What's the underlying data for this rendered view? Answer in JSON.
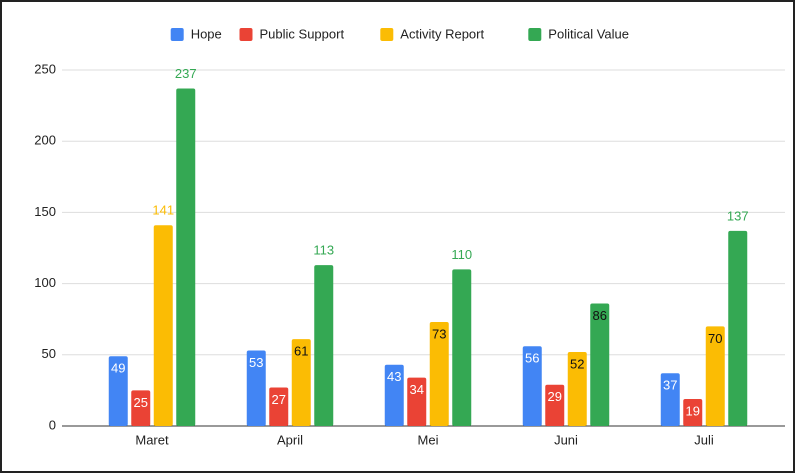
{
  "chart_data": {
    "type": "bar",
    "categories": [
      "Maret",
      "April",
      "Mei",
      "Juni",
      "Juli"
    ],
    "series": [
      {
        "name": "Hope",
        "color": "#4285f4",
        "values": [
          49,
          53,
          43,
          56,
          37
        ]
      },
      {
        "name": "Public Support",
        "color": "#ea4335",
        "values": [
          25,
          27,
          34,
          29,
          19
        ]
      },
      {
        "name": "Activity Report",
        "color": "#fbbc04",
        "values": [
          141,
          61,
          73,
          52,
          70
        ]
      },
      {
        "name": "Political Value",
        "color": "#34a853",
        "values": [
          237,
          113,
          110,
          86,
          137
        ]
      }
    ],
    "ylim": [
      0,
      250
    ],
    "yticks": [
      0,
      50,
      100,
      150,
      200,
      250
    ],
    "grid": true,
    "legend": "top"
  }
}
